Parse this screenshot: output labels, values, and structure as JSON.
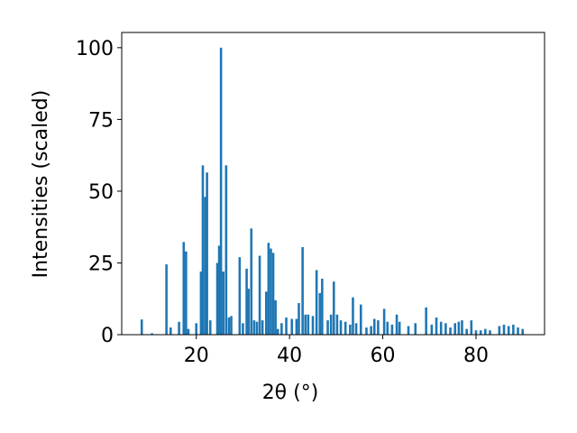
{
  "chart_data": {
    "type": "bar",
    "xlabel": "2θ (°)",
    "ylabel": "Intensities (scaled)",
    "color": "#1f77b4",
    "xlim": [
      4,
      94.7
    ],
    "ylim": [
      0,
      105.3
    ],
    "xticks": [
      20,
      40,
      60,
      80
    ],
    "yticks": [
      0,
      25,
      50,
      75,
      100
    ],
    "x": [
      8.3,
      10.5,
      13.6,
      14.5,
      16.3,
      17.3,
      17.8,
      18.3,
      20,
      21,
      21.4,
      21.9,
      22.3,
      23,
      24.5,
      24.9,
      25.3,
      25.8,
      26.4,
      27,
      27.5,
      29.3,
      30,
      30.8,
      31.2,
      31.8,
      32.4,
      33,
      33.6,
      34.2,
      35,
      35.5,
      36,
      36.5,
      37,
      37.5,
      38.3,
      39.3,
      40.5,
      41.5,
      42,
      42.8,
      43.4,
      44,
      45,
      45.8,
      46.5,
      47,
      48.2,
      48.9,
      49.5,
      50.2,
      51,
      52,
      53,
      53.6,
      54.3,
      55.3,
      56.5,
      57.5,
      58.2,
      59,
      60.3,
      61,
      62,
      63,
      63.6,
      65.5,
      67,
      69.3,
      70.5,
      71.5,
      72.5,
      73.5,
      74.5,
      75.5,
      76.3,
      77,
      78,
      79,
      80,
      81,
      82,
      83,
      85,
      86,
      87,
      88,
      89,
      90
    ],
    "values": [
      5.3,
      0.5,
      24.5,
      2.5,
      4.5,
      32.3,
      29,
      2,
      4,
      22,
      59,
      48,
      56.5,
      5,
      25,
      31,
      100,
      22,
      59,
      6,
      6.5,
      27,
      4,
      23,
      16,
      37,
      5,
      4.5,
      27.5,
      5,
      15,
      32,
      30,
      28.5,
      12,
      2,
      4,
      6,
      5.5,
      5.5,
      11,
      30.5,
      7,
      7,
      6.5,
      22.5,
      14.5,
      19.5,
      5,
      7,
      18.5,
      7,
      5,
      4.5,
      3.5,
      13,
      4,
      10.5,
      2.5,
      3,
      5.5,
      5,
      9,
      4.5,
      3.5,
      7,
      4.5,
      3,
      4,
      9.5,
      3.5,
      6,
      4.5,
      4,
      2.5,
      4,
      4.5,
      5,
      2,
      5,
      1.5,
      1.5,
      2,
      1.5,
      3,
      3.5,
      3,
      3.5,
      2.5,
      2
    ]
  }
}
